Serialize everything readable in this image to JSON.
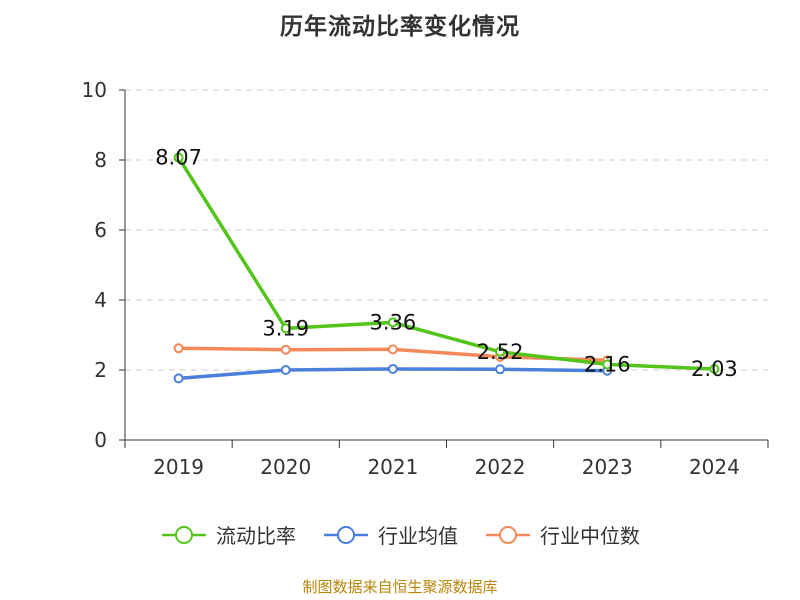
{
  "chart_data": {
    "type": "line",
    "title": "历年流动比率变化情况",
    "categories": [
      "2019",
      "2020",
      "2021",
      "2022",
      "2023",
      "2024"
    ],
    "series": [
      {
        "name": "流动比率",
        "values": [
          8.07,
          3.19,
          3.36,
          2.52,
          2.16,
          2.03
        ],
        "color": "#52c41a",
        "labels": [
          "8.07",
          "3.19",
          "3.36",
          "2.52",
          "2.16",
          "2.03"
        ]
      },
      {
        "name": "行业均值",
        "values": [
          1.76,
          2.0,
          2.03,
          2.02,
          1.98,
          null
        ],
        "color": "#4a7fdb"
      },
      {
        "name": "行业中位数",
        "values": [
          2.62,
          2.58,
          2.59,
          2.38,
          2.28,
          null
        ],
        "color": "#f5895a"
      }
    ],
    "ylim": [
      0,
      10
    ],
    "yticks": [
      0,
      2,
      4,
      6,
      8,
      10
    ],
    "grid": true,
    "legend_position": "bottom"
  },
  "footer": {
    "source": "制图数据来自恒生聚源数据库"
  }
}
